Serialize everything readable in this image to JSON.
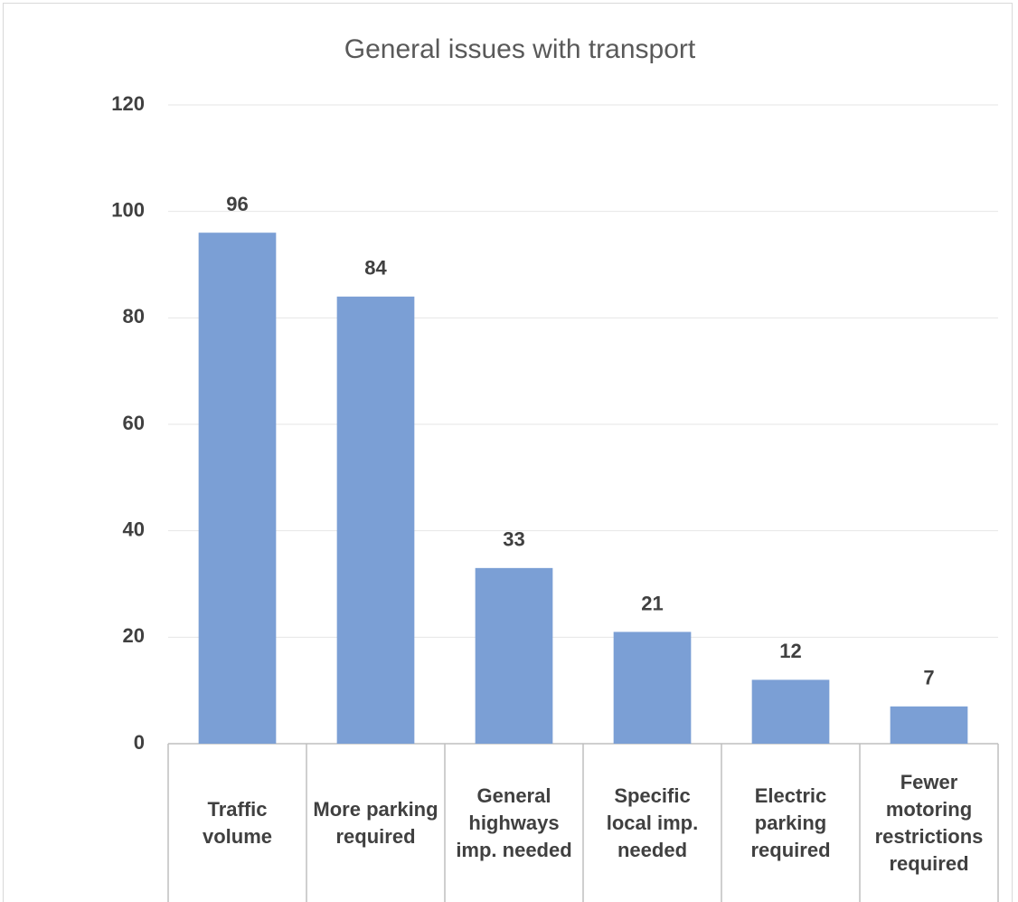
{
  "chart_data": {
    "type": "bar",
    "title": "General issues with transport",
    "categories": [
      "Traffic volume",
      "More parking required",
      "General highways imp. needed",
      "Specific local imp. needed",
      "Electric parking required",
      "Fewer motoring restrictions required"
    ],
    "values": [
      96,
      84,
      33,
      21,
      12,
      7
    ],
    "color": "#7b9fd5",
    "ylim": [
      0,
      120
    ],
    "yticks": [
      0,
      20,
      40,
      60,
      80,
      100,
      120
    ],
    "grid": true
  }
}
